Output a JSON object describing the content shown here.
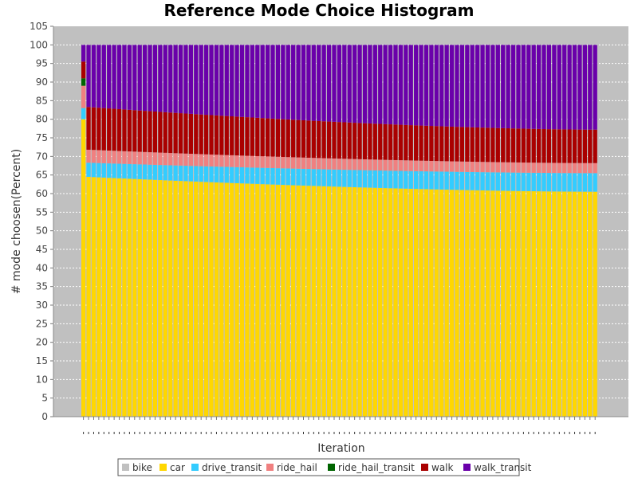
{
  "chart_data": {
    "type": "bar",
    "stacked": true,
    "title": "Reference Mode Choice Histogram",
    "xlabel": "Iteration",
    "ylabel": "# mode choosen(Percent)",
    "ylim": [
      0,
      105
    ],
    "yticks": [
      0,
      5,
      10,
      15,
      20,
      25,
      30,
      35,
      40,
      45,
      50,
      55,
      60,
      65,
      70,
      75,
      80,
      85,
      90,
      95,
      100,
      105
    ],
    "grid": true,
    "legend_position": "bottom",
    "x_tick_labels_visible": false,
    "categories_count": 101,
    "series": [
      {
        "name": "bike",
        "color": "#C0C0C0",
        "first": 0,
        "start": 0,
        "end": 0
      },
      {
        "name": "car",
        "color": "#FFD700",
        "first": 80.0,
        "start": 64.5,
        "end": 60.5
      },
      {
        "name": "drive_transit",
        "color": "#33CCFF",
        "first": 3.0,
        "start": 3.8,
        "end": 5.0
      },
      {
        "name": "ride_hail",
        "color": "#F08080",
        "first": 6.0,
        "start": 3.5,
        "end": 2.7
      },
      {
        "name": "ride_hail_transit",
        "color": "#006400",
        "first": 2.0,
        "start": 0.0,
        "end": 0.0
      },
      {
        "name": "walk",
        "color": "#AA0000",
        "first": 4.5,
        "start": 11.5,
        "end": 9.0
      },
      {
        "name": "walk_transit",
        "color": "#6A00AA",
        "first": 4.5,
        "start": 16.7,
        "end": 22.8
      }
    ]
  }
}
